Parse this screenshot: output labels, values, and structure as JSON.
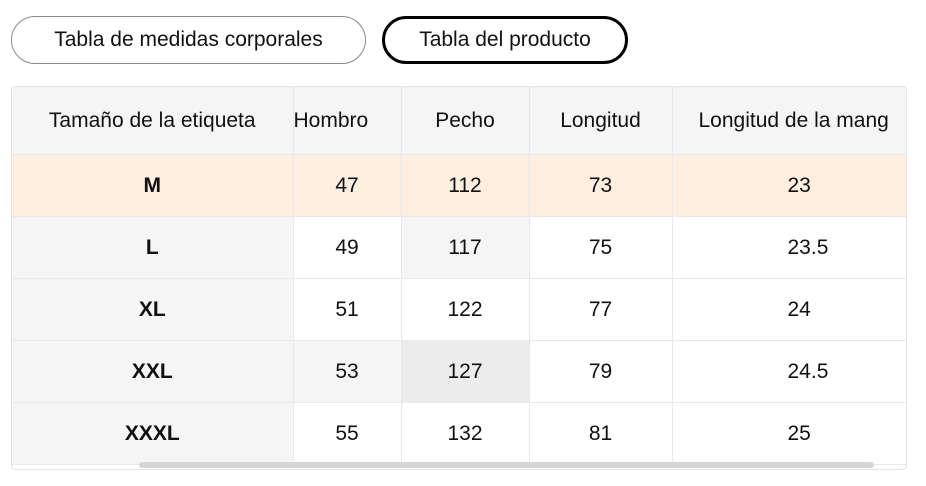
{
  "tabs": [
    {
      "label": "Tabla de medidas corporales",
      "active": false
    },
    {
      "label": "Tabla del producto",
      "active": true
    }
  ],
  "table": {
    "headers": [
      "Tamaño de la etiqueta",
      "Hombro",
      "Pecho",
      "Longitud",
      "Longitud de la mang"
    ],
    "rows": [
      [
        "M",
        "47",
        "112",
        "73",
        "23"
      ],
      [
        "L",
        "49",
        "117",
        "75",
        "23.5"
      ],
      [
        "XL",
        "51",
        "122",
        "77",
        "24"
      ],
      [
        "XXL",
        "53",
        "127",
        "79",
        "24.5"
      ],
      [
        "XXXL",
        "55",
        "132",
        "81",
        "25"
      ]
    ],
    "highlighted_row": "M"
  },
  "colors": {
    "highlight_row": "#fdeee0",
    "header_bg": "#f5f5f6",
    "active_tab_border": "#000000"
  }
}
